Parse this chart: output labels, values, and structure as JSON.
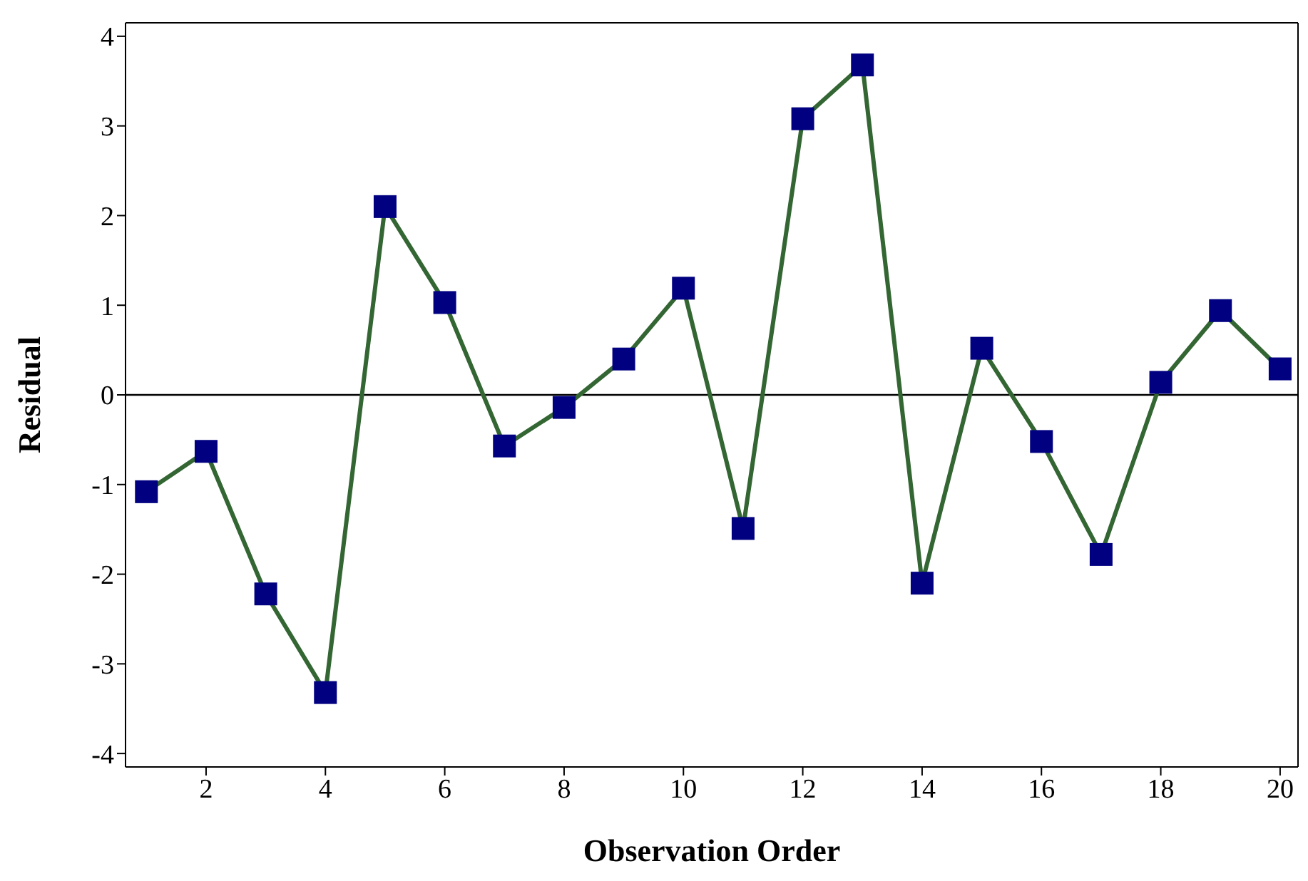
{
  "chart_data": {
    "type": "line",
    "xlabel": "Observation Order",
    "ylabel": "Residual",
    "x": [
      1,
      2,
      3,
      4,
      5,
      6,
      7,
      8,
      9,
      10,
      11,
      12,
      13,
      14,
      15,
      16,
      17,
      18,
      19,
      20
    ],
    "series": [
      {
        "color": "#336633",
        "colors": [
          "#000080",
          "#000080",
          "#000080",
          "#000080",
          "#000080",
          "#000080",
          "#000080",
          "#000080",
          "#000080",
          "#000080",
          "#000080",
          "#000080",
          "#000080",
          "#000080",
          "#000080",
          "#000080",
          "#000080",
          "#000080",
          "#000080",
          "#000080"
        ],
        "values": [
          -1.08,
          -0.63,
          -2.22,
          -3.32,
          2.1,
          1.03,
          -0.57,
          -0.14,
          0.4,
          1.19,
          -1.49,
          3.08,
          3.68,
          -2.1,
          0.52,
          -0.52,
          -1.78,
          0.14,
          0.94,
          0.29
        ]
      }
    ],
    "marker": "square",
    "line_style": "solid",
    "xlim": [
      0.65,
      20.3
    ],
    "xticks": [
      2,
      4,
      6,
      8,
      10,
      12,
      14,
      16,
      18,
      20
    ],
    "ylim": [
      -4.15,
      4.15
    ],
    "yticks": [
      -4,
      -3,
      -2,
      -1,
      0,
      1,
      2,
      3,
      4
    ],
    "ref_lines": [
      {
        "axis": "y",
        "value": 0,
        "color": "#000000"
      }
    ],
    "grid": false,
    "legend": false
  }
}
